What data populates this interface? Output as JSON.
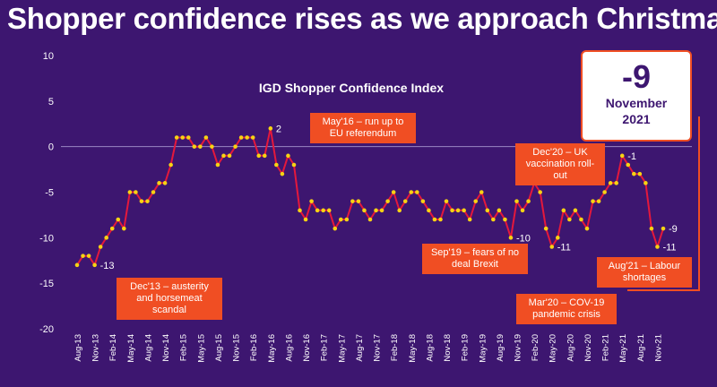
{
  "headline": "Shopper confidence rises as we approach Christmas",
  "callout": {
    "value": "-9",
    "month": "November",
    "year": "2021"
  },
  "chart_data": {
    "type": "line",
    "title": "IGD Shopper Confidence Index",
    "xlabel": "",
    "ylabel": "",
    "ylim": [
      -20,
      10
    ],
    "yticks": [
      10,
      5,
      0,
      -5,
      -10,
      -15,
      -20
    ],
    "grid": false,
    "zero_line": true,
    "colors": {
      "line": "#e4183c",
      "point": "#f7d313",
      "background": "#3d1670",
      "annotation": "#f04e23"
    },
    "x_tick_labels": [
      "Aug-13",
      "Nov-13",
      "Feb-14",
      "May-14",
      "Aug-14",
      "Nov-14",
      "Feb-15",
      "May-15",
      "Aug-15",
      "Nov-15",
      "Feb-16",
      "May-16",
      "Aug-16",
      "Nov-16",
      "Feb-17",
      "May-17",
      "Aug-17",
      "Nov-17",
      "Feb-18",
      "May-18",
      "Aug-18",
      "Nov-18",
      "Feb-19",
      "May-19",
      "Aug-19",
      "Nov-19",
      "Feb-20",
      "May-20",
      "Aug-20",
      "Nov-20",
      "Feb-21",
      "May-21",
      "Aug-21",
      "Nov-21"
    ],
    "values": [
      -13,
      -12,
      -12,
      -13,
      -11,
      -10,
      -9,
      -8,
      -9,
      -5,
      -5,
      -6,
      -6,
      -5,
      -4,
      -4,
      -2,
      1,
      1,
      1,
      0,
      0,
      1,
      0,
      -2,
      -1,
      -1,
      0,
      1,
      1,
      1,
      -1,
      -1,
      2,
      -2,
      -3,
      -1,
      -2,
      -7,
      -8,
      -6,
      -7,
      -7,
      -7,
      -9,
      -8,
      -8,
      -6,
      -6,
      -7,
      -8,
      -7,
      -7,
      -6,
      -5,
      -7,
      -6,
      -5,
      -5,
      -6,
      -7,
      -8,
      -8,
      -6,
      -7,
      -7,
      -7,
      -8,
      -6,
      -5,
      -7,
      -8,
      -7,
      -8,
      -10,
      -6,
      -7,
      -6,
      -4,
      -5,
      -9,
      -11,
      -10,
      -7,
      -8,
      -7,
      -8,
      -9,
      -6,
      -6,
      -5,
      -4,
      -4,
      -1,
      -2,
      -3,
      -3,
      -4,
      -9,
      -11,
      -9
    ],
    "point_labels": [
      {
        "index": 3,
        "text": "-13"
      },
      {
        "index": 33,
        "text": "2"
      },
      {
        "index": 74,
        "text": "-10"
      },
      {
        "index": 81,
        "text": "-11"
      },
      {
        "index": 93,
        "text": "-1"
      },
      {
        "index": 99,
        "text": "-11"
      },
      {
        "index": 100,
        "text": "-9"
      }
    ],
    "annotations": [
      {
        "lines": [
          "Dec'13 – austerity",
          "and horsemeat",
          "scandal"
        ]
      },
      {
        "lines": [
          "May'16 – run up to",
          "EU referendum"
        ]
      },
      {
        "lines": [
          "Sep'19 – fears of no",
          "deal Brexit"
        ]
      },
      {
        "lines": [
          "Dec'20 – UK",
          "vaccination roll-",
          "out"
        ]
      },
      {
        "lines": [
          "Mar'20 – COV-19",
          "pandemic crisis"
        ]
      },
      {
        "lines": [
          "Aug'21 – Labour",
          "shortages"
        ]
      }
    ]
  }
}
